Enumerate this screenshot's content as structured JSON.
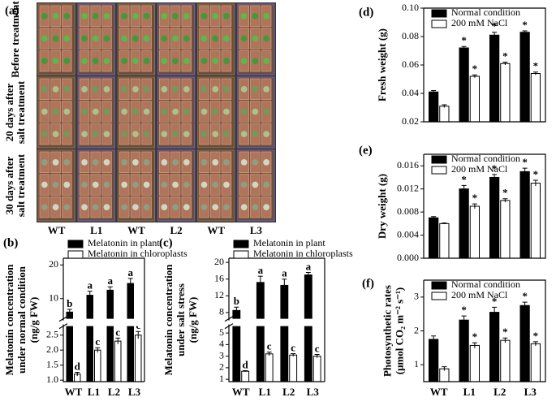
{
  "photo_panel": {
    "label": "(a)",
    "rows": [
      [
        "Before treatment"
      ],
      [
        "20 days after",
        "salt treatment"
      ],
      [
        "30 days after",
        "salt treatment"
      ]
    ],
    "columns": [
      "WT",
      "L1",
      "WT",
      "L2",
      "WT",
      "L3"
    ]
  },
  "chart_data": [
    {
      "type": "bar",
      "panel": "(b)",
      "ylabel": [
        "Melatonin concentration",
        "under normal condition",
        "(ng/g FW)"
      ],
      "categories": [
        "WT",
        "L1",
        "L2",
        "L3"
      ],
      "series": [
        {
          "name": "Melatonin in plant",
          "color": "#000000",
          "values": [
            6,
            11,
            12.5,
            14.5
          ],
          "errors": [
            0.8,
            1.2,
            1,
            1.5
          ],
          "labels": [
            "b",
            "a",
            "a",
            "a"
          ]
        },
        {
          "name": "Melatonin in chloroplasts",
          "color": "#ffffff",
          "values": [
            1.2,
            2.0,
            2.3,
            2.5
          ],
          "errors": [
            0.06,
            0.08,
            0.1,
            0.12
          ],
          "labels": [
            "d",
            "c",
            "c",
            "c"
          ]
        }
      ],
      "ylim": [
        0.95,
        22
      ],
      "ybreak": [
        2.8,
        4
      ],
      "yticks": [
        {
          "value": 1,
          "label": "1.0"
        },
        {
          "value": 1.5,
          "label": "1.5"
        },
        {
          "value": 2,
          "label": "2.0"
        },
        {
          "value": 2.5,
          "label": "2.5"
        },
        10,
        20
      ]
    },
    {
      "type": "bar",
      "panel": "(c)",
      "ylabel": [
        "Melatonin concentration",
        "under salt stress",
        "(ng/g FW)"
      ],
      "categories": [
        "WT",
        "L1",
        "L2",
        "L3"
      ],
      "series": [
        {
          "name": "Melatonin in plant",
          "color": "#000000",
          "values": [
            8.5,
            15.2,
            14.5,
            17
          ],
          "errors": [
            0.8,
            1.5,
            1.5,
            0.6
          ],
          "labels": [
            "b",
            "a",
            "a",
            "a"
          ]
        },
        {
          "name": "Melatonin in chloroplasts",
          "color": "#ffffff",
          "values": [
            1.7,
            3.2,
            3.1,
            3.0
          ],
          "errors": [
            0.05,
            0.15,
            0.12,
            0.15
          ],
          "labels": [
            "d",
            "c",
            "c",
            "c"
          ]
        }
      ],
      "ylim": [
        0.8,
        21
      ],
      "ybreak": [
        5.6,
        6.5
      ],
      "yticks": [
        1,
        2,
        3,
        4,
        5,
        8,
        12,
        16,
        20
      ]
    },
    {
      "type": "bar",
      "panel": "(d)",
      "ylabel": [
        "Fresh weight (g)"
      ],
      "series": [
        {
          "name": "Normal condition",
          "color": "#000000",
          "values": [
            0.041,
            0.072,
            0.081,
            0.083
          ],
          "errors": [
            0.001,
            0.001,
            0.002,
            0.001
          ],
          "labels": [
            null,
            "*",
            "*",
            "*"
          ]
        },
        {
          "name": "200 mM NaCl",
          "color": "#ffffff",
          "values": [
            0.031,
            0.052,
            0.061,
            0.054
          ],
          "errors": [
            0.001,
            0.001,
            0.001,
            0.001
          ],
          "labels": [
            null,
            "*",
            "*",
            "*"
          ]
        }
      ],
      "ylim": [
        0.02,
        0.1
      ],
      "yticks": [
        0.02,
        0.04,
        0.06,
        0.08,
        {
          "value": 0.1,
          "label": "0.10"
        }
      ]
    },
    {
      "type": "bar",
      "panel": "(e)",
      "ylabel": [
        "Dry weight (g)"
      ],
      "series": [
        {
          "name": "Normal condition",
          "color": "#000000",
          "values": [
            0.007,
            0.012,
            0.014,
            0.015
          ],
          "errors": [
            0.0002,
            0.0006,
            0.0005,
            0.0006
          ],
          "labels": [
            null,
            "*",
            "*",
            "*"
          ]
        },
        {
          "name": "200 mM NaCl",
          "color": "#ffffff",
          "values": [
            0.006,
            0.009,
            0.01,
            0.013
          ],
          "errors": [
            0.0001,
            0.0004,
            0.0003,
            0.0005
          ],
          "labels": [
            null,
            "*",
            "*",
            "*"
          ]
        }
      ],
      "ylim": [
        0,
        0.018
      ],
      "yticks": [
        {
          "value": 0,
          "label": "0.000"
        },
        {
          "value": 0.004,
          "label": "0.004"
        },
        {
          "value": 0.008,
          "label": "0.008"
        },
        {
          "value": 0.012,
          "label": "0.012"
        },
        {
          "value": 0.016,
          "label": "0.016"
        }
      ]
    },
    {
      "type": "bar",
      "panel": "(f)",
      "ylabel": [
        "Photosynthetic rates",
        "(μmol CO₂ m⁻² s⁻¹)"
      ],
      "categories": [
        "WT",
        "L1",
        "L2",
        "L3"
      ],
      "series": [
        {
          "name": "Normal condition",
          "color": "#000000",
          "values": [
            1.75,
            2.32,
            2.55,
            2.75
          ],
          "errors": [
            0.1,
            0.12,
            0.15,
            0.1
          ],
          "labels": [
            null,
            "*",
            "*",
            "*"
          ]
        },
        {
          "name": "200 mM NaCl",
          "color": "#ffffff",
          "values": [
            0.88,
            1.57,
            1.72,
            1.62
          ],
          "errors": [
            0.06,
            0.08,
            0.07,
            0.06
          ],
          "labels": [
            null,
            "*",
            "*",
            "*"
          ]
        }
      ],
      "ylim": [
        0.5,
        3.5
      ],
      "yticks": [
        1,
        2,
        3
      ]
    }
  ]
}
